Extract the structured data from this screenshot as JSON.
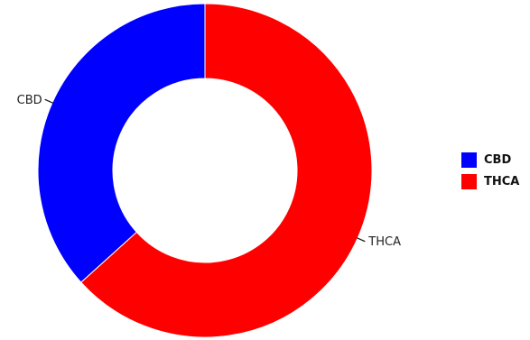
{
  "chart_data": {
    "type": "pie",
    "variant": "donut",
    "categories": [
      "CBD",
      "THCA"
    ],
    "values": [
      36.7,
      63.3
    ],
    "colors": [
      "#0000ff",
      "#ff0000"
    ],
    "slice_labels": [
      "CBD",
      "THCA"
    ],
    "legend": {
      "placement": "right",
      "entries": [
        {
          "label": "CBD",
          "color": "#0000ff"
        },
        {
          "label": "THCA",
          "color": "#ff0000"
        }
      ]
    }
  }
}
